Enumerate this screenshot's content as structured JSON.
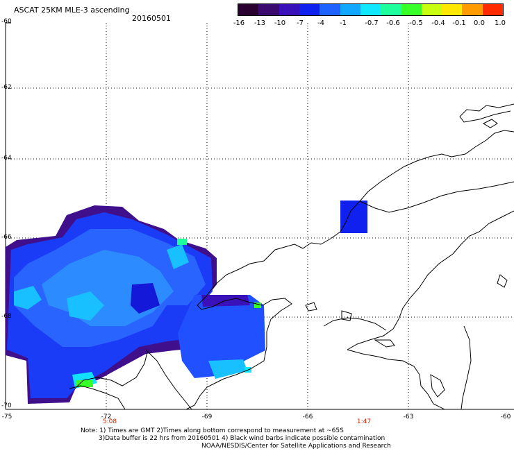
{
  "header": {
    "title": "ASCAT 25KM MLE-3 ascending",
    "date": "20160501"
  },
  "colorbar": {
    "labels": [
      "-16",
      "-13",
      "-10",
      "-7",
      "-4",
      "-1",
      "-0.7",
      "-0.6",
      "-0.5",
      "-0.4",
      "-0.1",
      "0.0",
      "1.0"
    ],
    "colors": [
      "#2a0030",
      "#3a0a6e",
      "#3a10b8",
      "#1020ee",
      "#1e62ff",
      "#12a8ff",
      "#10e8ff",
      "#1cff9c",
      "#38ff28",
      "#c8ff10",
      "#ffe800",
      "#ff9a00",
      "#ff2a00"
    ]
  },
  "axes": {
    "lat_labels": [
      "-60",
      "-62",
      "-64",
      "-66",
      "-68",
      "-70"
    ],
    "lon_labels": [
      "-75",
      "-72",
      "-69",
      "-66",
      "-63",
      "-60"
    ]
  },
  "times": [
    "5:08",
    "1:47"
  ],
  "notes": {
    "line1": "Note: 1) Times are GMT 2)Times along bottom correspond to measurement at ~65S",
    "line2": "3)Data buffer is 22 hrs from 20160501 4) Black wind barbs indicate possible contamination",
    "line3": "NOAA/NESDIS/Center for Satellite Applications and Research"
  }
}
